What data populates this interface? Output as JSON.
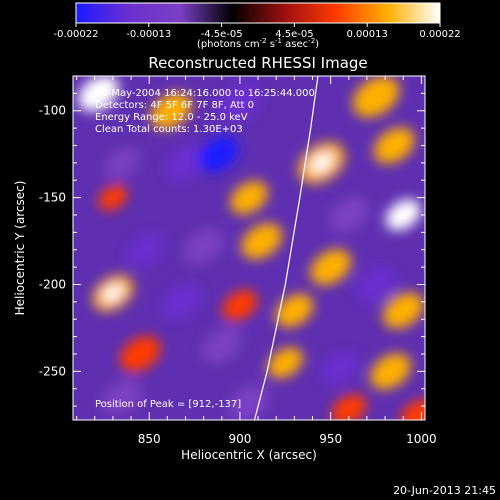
{
  "chart_data": {
    "type": "heatmap",
    "title": "Reconstructed RHESSI Image",
    "xlabel": "Heliocentric X (arcsec)",
    "ylabel": "Heliocentric Y (arcsec)",
    "xlim": [
      808,
      1002
    ],
    "ylim": [
      -278,
      -80
    ],
    "x_ticks": [
      850,
      900,
      950,
      1000
    ],
    "y_ticks": [
      -100,
      -150,
      -200,
      -250
    ],
    "colorbar": {
      "min": -0.00022,
      "max": 0.00022,
      "tick_labels": [
        "-0.00022",
        "-0.00013",
        "-4.5e-05",
        "4.5e-05",
        "0.00013",
        "0.00022"
      ],
      "units_html": "(photons cm<tspan dy='-4' font-size='7'>-2</tspan><tspan dy='4'> s</tspan><tspan dy='-4' font-size='7'>-1</tspan><tspan dy='4'> asec</tspan><tspan dy='-4' font-size='7'>-2</tspan><tspan dy='4'>)</tspan>",
      "colors": [
        "#1a1aff",
        "#6a2fd0",
        "#7b3fc4",
        "#000000",
        "#9b1010",
        "#ff3a00",
        "#ffb000",
        "#ffffff"
      ]
    },
    "annotations": [
      "30-May-2004 16:24:16.000 to 16:25:44.000",
      "Detectors: 4F 5F 6F 7F 8F, Att 0",
      "Energy Range: 12.0 - 25.0 keV",
      "Clean     Total counts: 1.30E+03"
    ],
    "peak_label": "Position of Peak = [912,-137]",
    "peak": [
      912,
      -137
    ],
    "limb_line": [
      [
        943,
        -80
      ],
      [
        939,
        -110
      ],
      [
        933,
        -150
      ],
      [
        925,
        -200
      ],
      [
        915,
        -250
      ],
      [
        908,
        -278
      ]
    ],
    "blobs": [
      [
        822,
        -90,
        14,
        0.9
      ],
      [
        862,
        -100,
        14,
        0.7
      ],
      [
        900,
        -95,
        15,
        -0.6
      ],
      [
        975,
        -92,
        16,
        0.8
      ],
      [
        835,
        -130,
        12,
        -0.4
      ],
      [
        870,
        -130,
        14,
        -0.7
      ],
      [
        888,
        -125,
        14,
        -0.9
      ],
      [
        945,
        -130,
        16,
        0.85
      ],
      [
        985,
        -120,
        14,
        0.6
      ],
      [
        830,
        -150,
        10,
        0.5
      ],
      [
        905,
        -150,
        13,
        0.7
      ],
      [
        960,
        -160,
        14,
        -0.5
      ],
      [
        990,
        -160,
        12,
        0.95
      ],
      [
        848,
        -180,
        13,
        -0.6
      ],
      [
        880,
        -178,
        14,
        -0.5
      ],
      [
        912,
        -175,
        14,
        0.75
      ],
      [
        950,
        -190,
        14,
        0.6
      ],
      [
        975,
        -200,
        14,
        -0.6
      ],
      [
        830,
        -205,
        14,
        0.85
      ],
      [
        868,
        -210,
        14,
        -0.7
      ],
      [
        900,
        -212,
        12,
        0.5
      ],
      [
        930,
        -215,
        13,
        0.7
      ],
      [
        990,
        -215,
        14,
        0.6
      ],
      [
        845,
        -240,
        14,
        0.5
      ],
      [
        890,
        -235,
        14,
        -0.55
      ],
      [
        925,
        -245,
        12,
        0.6
      ],
      [
        955,
        -248,
        13,
        -0.8
      ],
      [
        983,
        -250,
        14,
        0.7
      ],
      [
        835,
        -265,
        14,
        -0.5
      ],
      [
        905,
        -268,
        14,
        -0.45
      ],
      [
        960,
        -272,
        12,
        0.4
      ],
      [
        998,
        -275,
        12,
        0.55
      ]
    ],
    "background_level": -0.25
  },
  "timestamp": "20-Jun-2013 21:45"
}
